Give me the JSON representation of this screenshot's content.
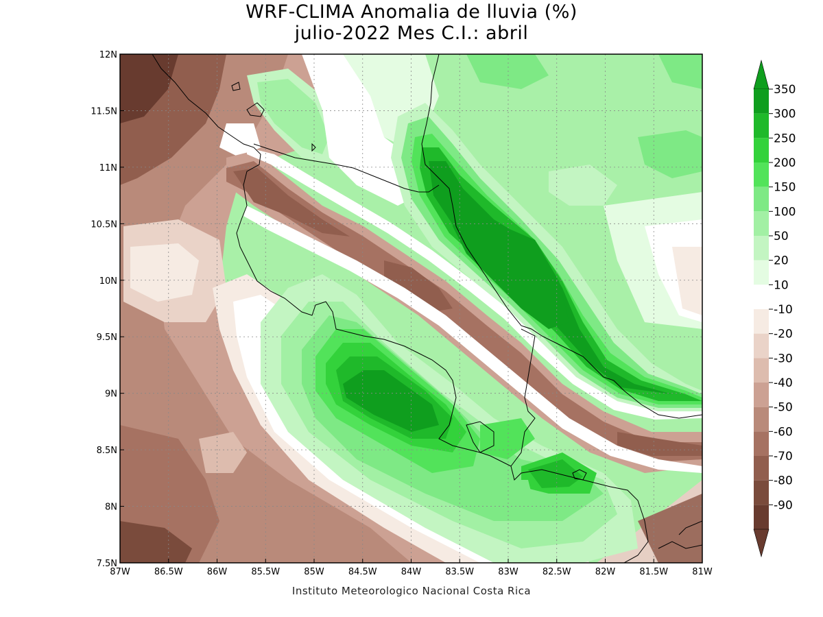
{
  "title": {
    "line1": "WRF-CLIMA Anomalia de lluvia (%)",
    "line2": "julio-2022 Mes C.I.: abril"
  },
  "credit": "Instituto Meteorologico Nacional Costa Rica",
  "map": {
    "lon_range": [
      -87,
      -81
    ],
    "lat_range": [
      7.5,
      12
    ],
    "x_ticks": [
      "87W",
      "86.5W",
      "86W",
      "85.5W",
      "85W",
      "84.5W",
      "84W",
      "83.5W",
      "83W",
      "82.5W",
      "82W",
      "81.5W",
      "81W"
    ],
    "y_ticks": [
      "12N",
      "11.5N",
      "11N",
      "10.5N",
      "10N",
      "9.5N",
      "9N",
      "8.5N",
      "8N",
      "7.5N"
    ],
    "grid": true
  },
  "legend": {
    "levels": [
      "350",
      "300",
      "250",
      "200",
      "150",
      "100",
      "50",
      "20",
      "10",
      "-10",
      "-20",
      "-30",
      "-40",
      "-50",
      "-60",
      "-70",
      "-80",
      "-90"
    ],
    "colors": [
      "#0f9e1e",
      "#1fb92a",
      "#33d23b",
      "#52e35a",
      "#7ee985",
      "#a2f0a4",
      "#c3f5c2",
      "#e4fce2",
      "#ffffff",
      "#f6ebe3",
      "#ead3c8",
      "#ddbcae",
      "#cca193",
      "#b98a7a",
      "#a67262",
      "#915e4e",
      "#7a4b3c",
      "#683b2f"
    ],
    "top_arrow_color": "#0f9e1e",
    "bottom_arrow_color": "#683b2f"
  }
}
